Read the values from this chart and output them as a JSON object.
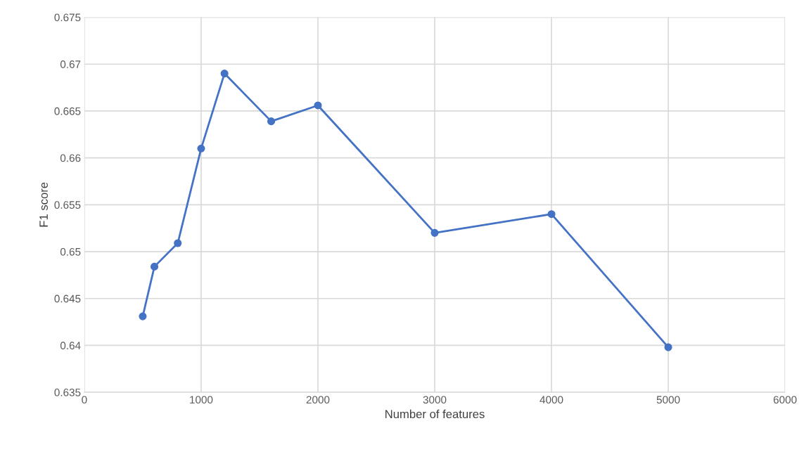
{
  "chart_data": {
    "type": "line",
    "xlabel": "Number of features",
    "ylabel": "F1 score",
    "x": [
      500,
      600,
      800,
      1000,
      1200,
      1600,
      2000,
      3000,
      4000,
      5000
    ],
    "series": [
      {
        "color": "#4472c4",
        "values": [
          0.6431,
          0.6484,
          0.6509,
          0.661,
          0.669,
          0.6639,
          0.6656,
          0.652,
          0.654,
          0.6398
        ]
      }
    ],
    "xlim": [
      0,
      6000
    ],
    "xticks": [
      0,
      1000,
      2000,
      3000,
      4000,
      5000,
      6000
    ],
    "ylim": [
      0.635,
      0.675
    ],
    "yticks": [
      0.635,
      0.64,
      0.645,
      0.65,
      0.655,
      0.66,
      0.665,
      0.67,
      0.675
    ],
    "grid": true,
    "marker": "circle",
    "line_style": "solid"
  }
}
